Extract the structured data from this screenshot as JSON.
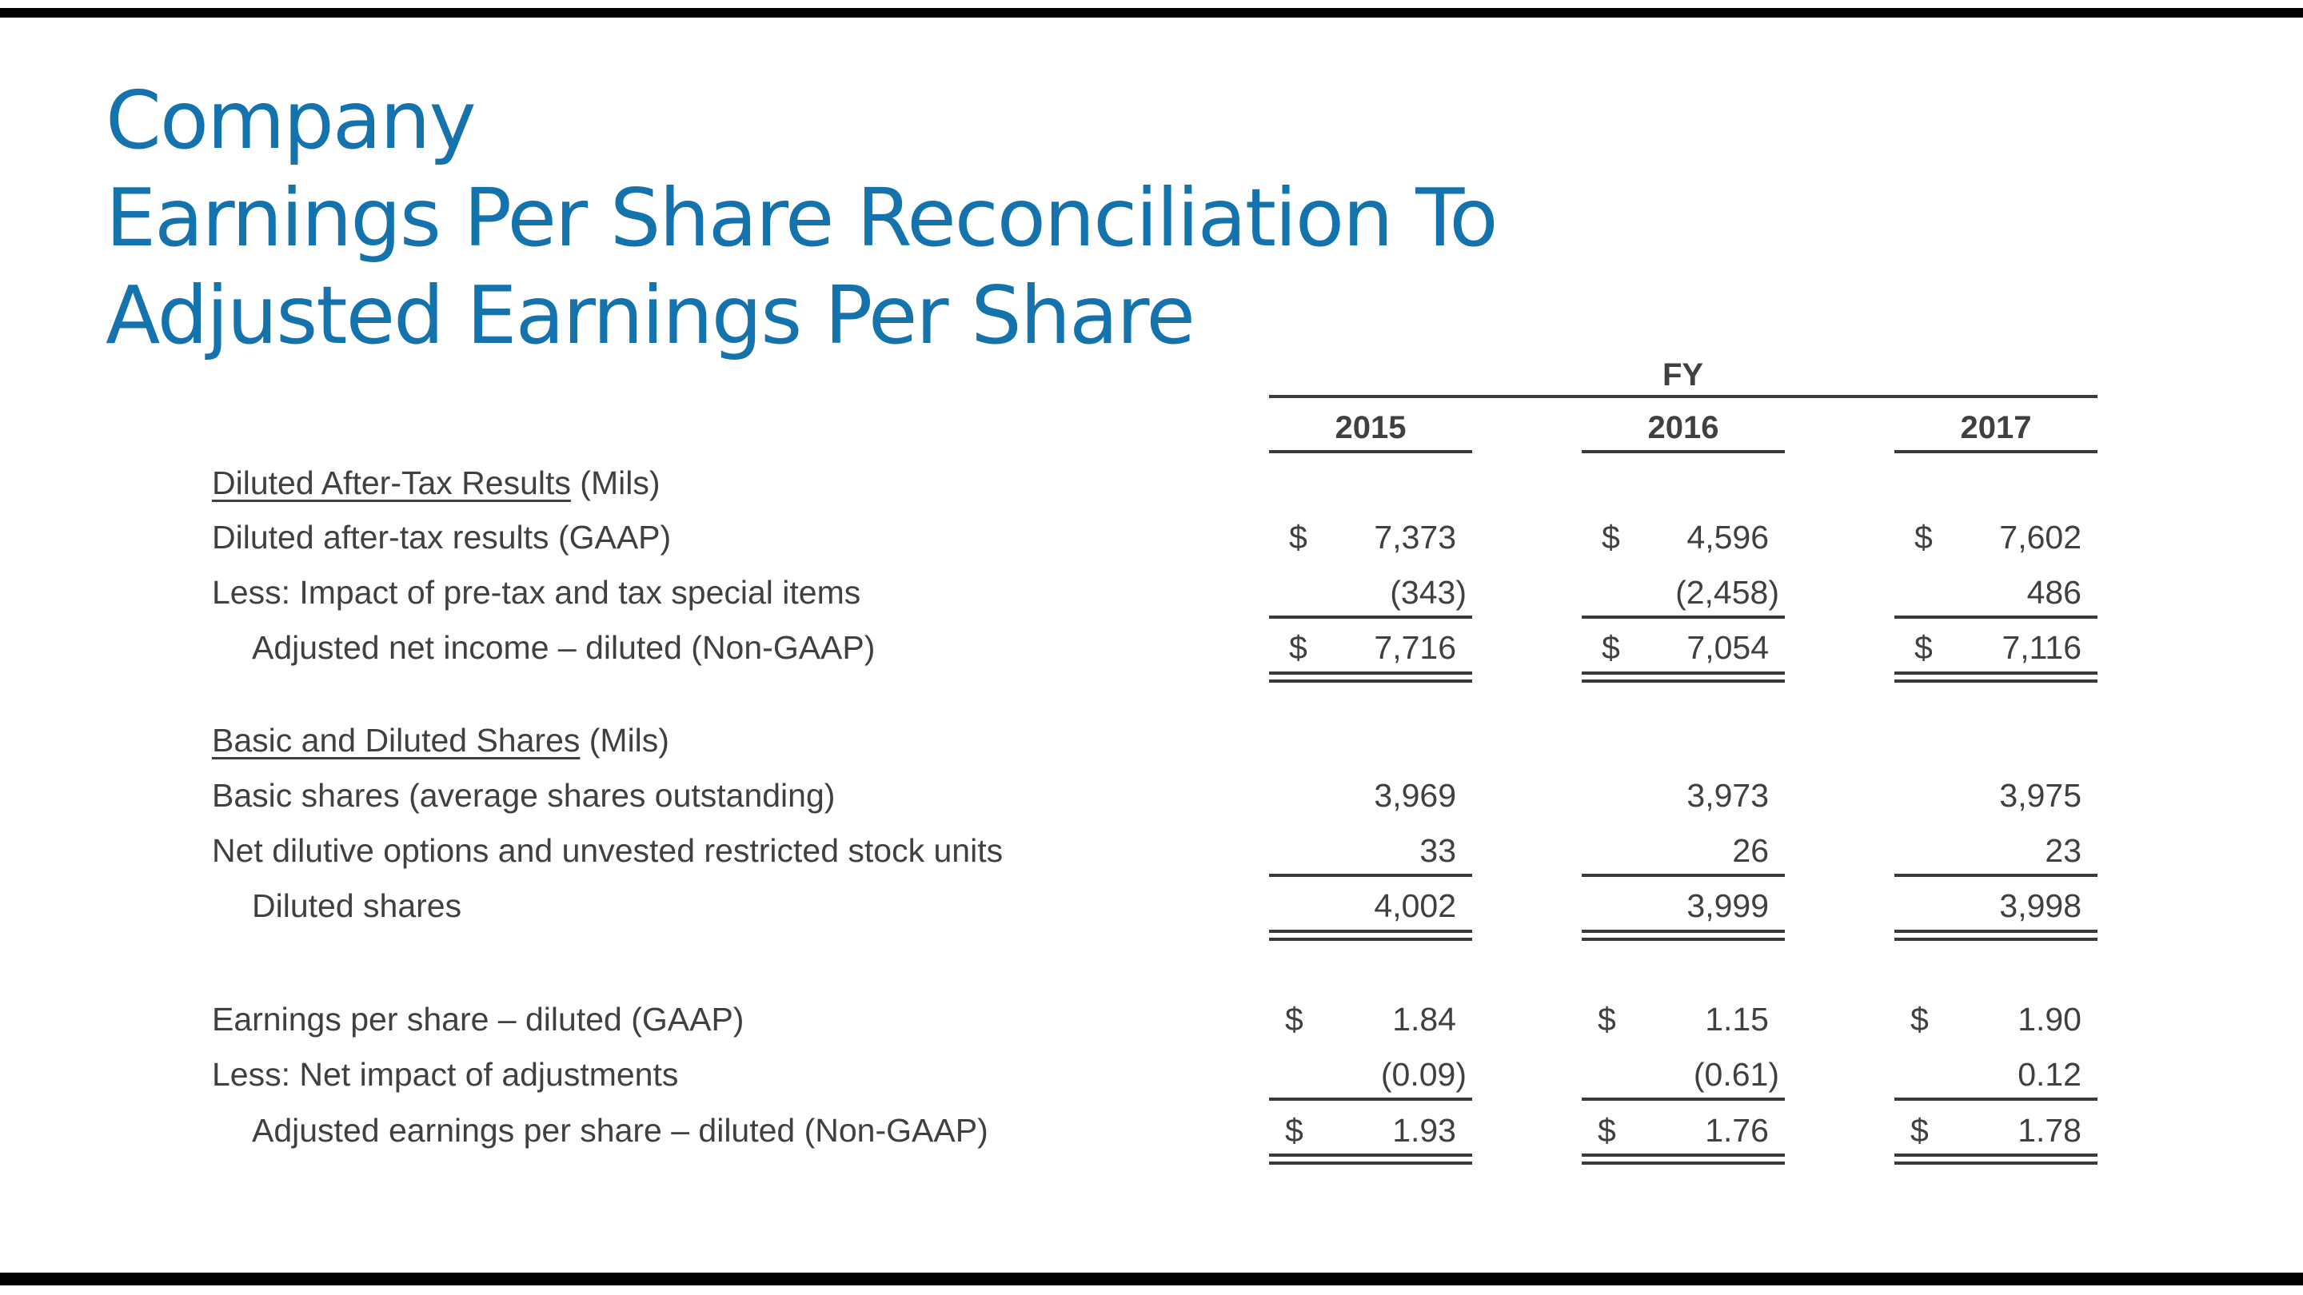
{
  "title": {
    "line1": "Company",
    "line2": "Earnings Per Share Reconciliation To",
    "line3": "Adjusted Earnings Per Share"
  },
  "table": {
    "group_header": "FY",
    "years": [
      "2015",
      "2016",
      "2017"
    ],
    "currency_symbol": "$",
    "section1": {
      "heading": "Diluted After-Tax Results",
      "heading_unit": " (Mils)",
      "rows": [
        {
          "label": "Diluted after-tax results (GAAP)",
          "values": [
            "7,373",
            "4,596",
            "7,602"
          ]
        },
        {
          "label": "Less:  Impact of pre-tax and tax special items",
          "values": [
            "(343)",
            "(2,458)",
            "486"
          ]
        },
        {
          "label": "Adjusted net income – diluted (Non-GAAP)",
          "values": [
            "7,716",
            "7,054",
            "7,116"
          ]
        }
      ]
    },
    "section2": {
      "heading": "Basic and Diluted Shares",
      "heading_unit": " (Mils)",
      "rows": [
        {
          "label": "Basic shares (average shares outstanding)",
          "values": [
            "3,969",
            "3,973",
            "3,975"
          ]
        },
        {
          "label": "Net dilutive options and unvested restricted stock units",
          "values": [
            "33",
            "26",
            "23"
          ]
        },
        {
          "label": "Diluted shares",
          "values": [
            "4,002",
            "3,999",
            "3,998"
          ]
        }
      ]
    },
    "section3": {
      "rows": [
        {
          "label": "Earnings per share – diluted (GAAP)",
          "values": [
            "1.84",
            "1.15",
            "1.90"
          ]
        },
        {
          "label": "Less:  Net impact of adjustments",
          "values": [
            "(0.09)",
            "(0.61)",
            "0.12"
          ]
        },
        {
          "label": "Adjusted earnings per share – diluted (Non-GAAP)",
          "values": [
            "1.93",
            "1.76",
            "1.78"
          ]
        }
      ]
    }
  }
}
